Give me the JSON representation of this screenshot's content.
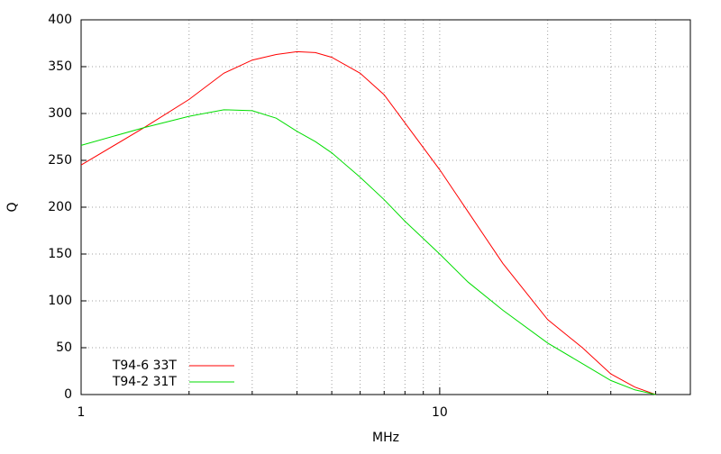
{
  "chart_data": {
    "type": "line",
    "xlabel": "MHz",
    "ylabel": "Q",
    "x": [
      1,
      1.5,
      2,
      2.5,
      3,
      3.5,
      4,
      4.5,
      5,
      6,
      7,
      8,
      10,
      12,
      15,
      20,
      25,
      30,
      35,
      40
    ],
    "series": [
      {
        "name": "T94-6 33T",
        "color": "#ff0000",
        "values": [
          245,
          285,
          315,
          343,
          357,
          363,
          366,
          365,
          360,
          343,
          320,
          290,
          240,
          195,
          140,
          80,
          50,
          22,
          8,
          0
        ]
      },
      {
        "name": "T94-2 31T",
        "color": "#00dd00",
        "values": [
          266,
          285,
          297,
          304,
          303,
          295,
          281,
          270,
          258,
          232,
          208,
          185,
          150,
          120,
          90,
          55,
          33,
          15,
          5,
          0
        ]
      }
    ],
    "xlim": [
      1,
      50
    ],
    "xscale": "log",
    "xticks": [
      1,
      10
    ],
    "xminorticks": [
      2,
      3,
      4,
      5,
      6,
      7,
      8,
      9,
      20,
      30,
      40
    ],
    "ylim": [
      0,
      400
    ],
    "yticks": [
      0,
      50,
      100,
      150,
      200,
      250,
      300,
      350,
      400
    ],
    "grid": true,
    "legend": "lower left"
  }
}
